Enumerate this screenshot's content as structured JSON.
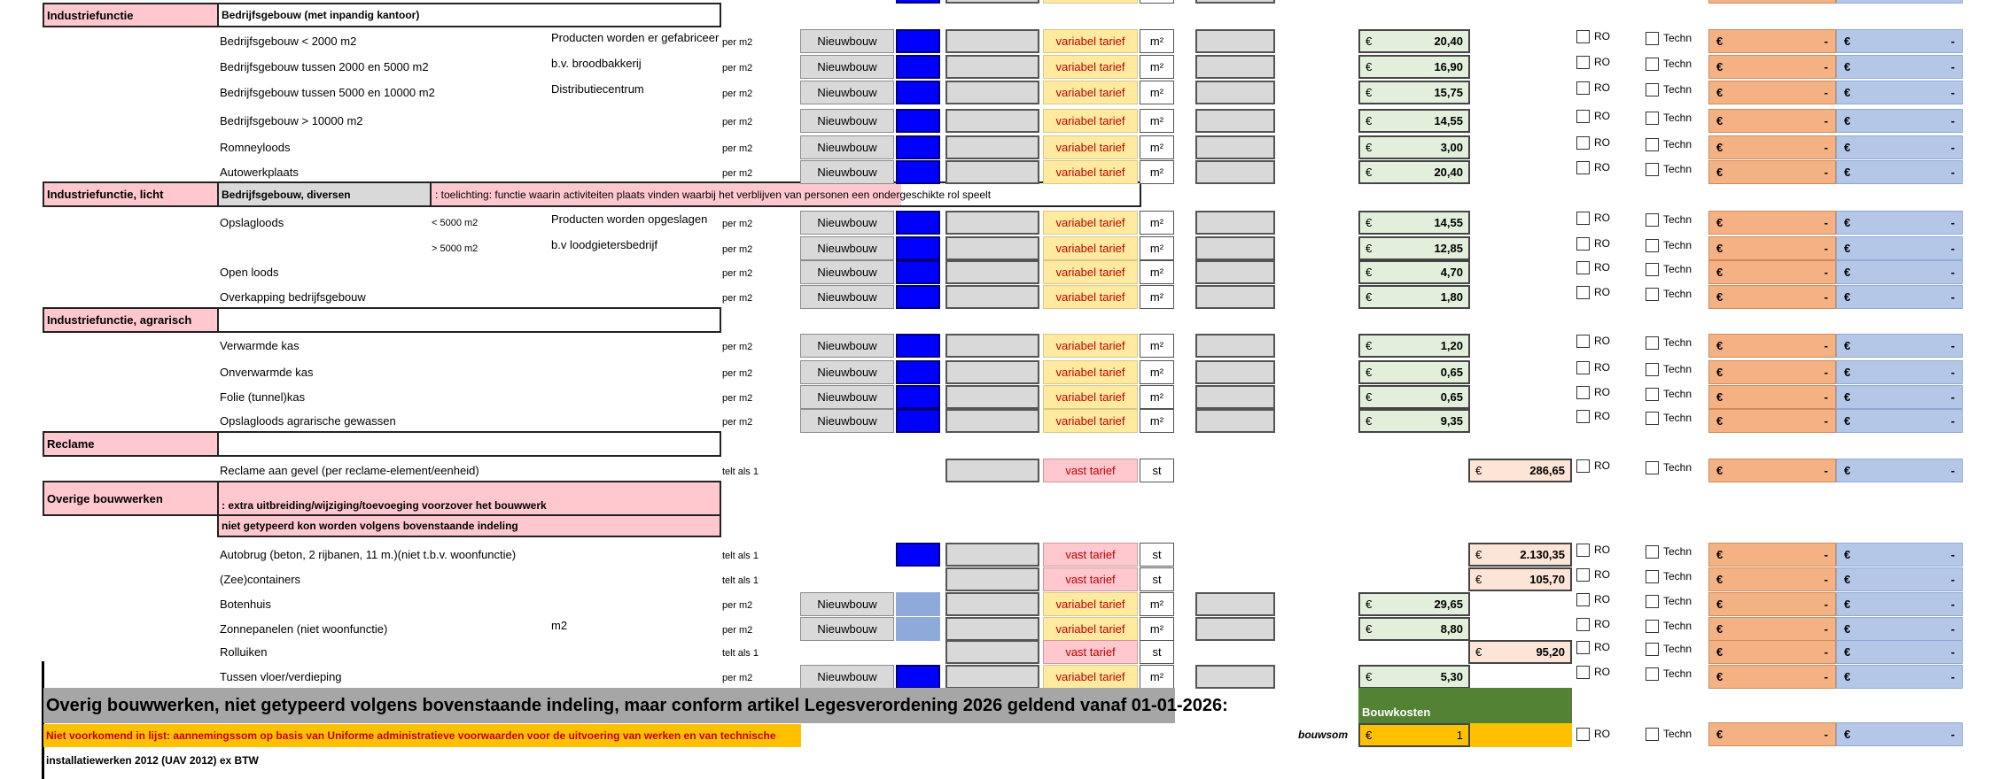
{
  "sections": {
    "industrie": "Industriefunctie",
    "industrie_sub": "Bedrijfsgebouw (met inpandig kantoor)",
    "licht": "Industriefunctie, licht",
    "licht_sub": "Bedrijfsgebouw, diversen",
    "licht_note": ": toelichting: functie waarin activiteiten plaats vinden waarbij het verblijven van personen een ondergeschikte rol speelt",
    "agrarisch": "Industriefunctie, agrarisch",
    "reclame": "Reclame",
    "overig": "Overige bouwwerken",
    "overig_note1": ": extra uitbreiding/wijziging/toevoeging  voorzover het bouwwerk",
    "overig_note2": " niet getypeerd kon worden volgens bovenstaande indeling"
  },
  "rows": [
    {
      "name": "Bedrijfsgebouw < 2000  m2",
      "extra": "",
      "desc": "Producten worden  er gefabriceerd",
      "unit_basis": "per m2",
      "type": "Nieuwbouw",
      "tarief": "variabel tarief",
      "eenheid": "m²",
      "price": "20,40"
    },
    {
      "name": "Bedrijfsgebouw tussen 2000  en 5000 m2",
      "extra": "",
      "desc": "b.v. broodbakkerij",
      "unit_basis": "per m2",
      "type": "Nieuwbouw",
      "tarief": "variabel tarief",
      "eenheid": "m²",
      "price": "16,90"
    },
    {
      "name": "Bedrijfsgebouw tussen 5000  en 10000 m2",
      "extra": "",
      "desc": "Distributiecentrum",
      "unit_basis": "per m2",
      "type": "Nieuwbouw",
      "tarief": "variabel tarief",
      "eenheid": "m²",
      "price": "15,75"
    },
    {
      "name": "Bedrijfsgebouw > 10000 m2",
      "extra": "",
      "desc": "",
      "unit_basis": "per m2",
      "type": "Nieuwbouw",
      "tarief": "variabel tarief",
      "eenheid": "m²",
      "price": "14,55"
    },
    {
      "name": "Romneyloods",
      "extra": "",
      "desc": "",
      "unit_basis": "per m2",
      "type": "Nieuwbouw",
      "tarief": "variabel tarief",
      "eenheid": "m²",
      "price": "3,00"
    },
    {
      "name": "Autowerkplaats",
      "extra": "",
      "desc": "",
      "unit_basis": "per m2",
      "type": "Nieuwbouw",
      "tarief": "variabel tarief",
      "eenheid": "m²",
      "price": "20,40"
    },
    {
      "name": "Opslagloods",
      "extra": "< 5000 m2",
      "desc": "Producten worden opgeslagen",
      "unit_basis": "per m2",
      "type": "Nieuwbouw",
      "tarief": "variabel tarief",
      "eenheid": "m²",
      "price": "14,55"
    },
    {
      "name": "",
      "extra": "> 5000 m2",
      "desc": "b.v loodgietersbedrijf",
      "unit_basis": "per m2",
      "type": "Nieuwbouw",
      "tarief": "variabel tarief",
      "eenheid": "m²",
      "price": "12,85"
    },
    {
      "name": "Open loods",
      "extra": "",
      "desc": "",
      "unit_basis": "per m2",
      "type": "Nieuwbouw",
      "tarief": "variabel tarief",
      "eenheid": "m²",
      "price": "4,70"
    },
    {
      "name": "Overkapping bedrijfsgebouw",
      "extra": "",
      "desc": "",
      "unit_basis": "per m2",
      "type": "Nieuwbouw",
      "tarief": "variabel tarief",
      "eenheid": "m²",
      "price": "1,80"
    },
    {
      "name": "Verwarmde kas",
      "extra": "",
      "desc": "",
      "unit_basis": "per m2",
      "type": "Nieuwbouw",
      "tarief": "variabel tarief",
      "eenheid": "m²",
      "price": "1,20"
    },
    {
      "name": "Onverwarmde kas",
      "extra": "",
      "desc": "",
      "unit_basis": "per m2",
      "type": "Nieuwbouw",
      "tarief": "variabel tarief",
      "eenheid": "m²",
      "price": "0,65"
    },
    {
      "name": "Folie (tunnel)kas",
      "extra": "",
      "desc": "",
      "unit_basis": "per m2",
      "type": "Nieuwbouw",
      "tarief": "variabel tarief",
      "eenheid": "m²",
      "price": "0,65"
    },
    {
      "name": "Opslagloods agrarische gewassen",
      "extra": "",
      "desc": "",
      "unit_basis": "per m2",
      "type": "Nieuwbouw",
      "tarief": "variabel tarief",
      "eenheid": "m²",
      "price": "9,35"
    },
    {
      "name": "Reclame aan gevel (per reclame-element/eenheid)",
      "extra": "",
      "desc": "",
      "unit_basis": "telt als 1",
      "type": "",
      "tarief": "vast tarief",
      "eenheid": "st",
      "price": "286,65"
    },
    {
      "name": "Autobrug (beton, 2 rijbanen, 11 m.)(niet t.b.v. woonfunctie)",
      "extra": "",
      "desc": "",
      "unit_basis": "telt als 1",
      "type": "",
      "tarief": "vast tarief",
      "eenheid": "st",
      "price": "2.130,35"
    },
    {
      "name": "(Zee)containers",
      "extra": "",
      "desc": "",
      "unit_basis": "telt als 1",
      "type": "",
      "tarief": "vast tarief",
      "eenheid": "st",
      "price": "105,70"
    },
    {
      "name": "Botenhuis",
      "extra": "",
      "desc": "",
      "unit_basis": "per m2",
      "type": "Nieuwbouw",
      "tarief": "variabel tarief",
      "eenheid": "m²",
      "price": "29,65"
    },
    {
      "name": "Zonnepanelen (niet woonfunctie)",
      "extra": "",
      "desc": "m2",
      "unit_basis": "per m2",
      "type": "Nieuwbouw",
      "tarief": "variabel tarief",
      "eenheid": "m²",
      "price": "8,80"
    },
    {
      "name": "Rolluiken",
      "extra": "",
      "desc": "",
      "unit_basis": "telt als 1",
      "type": "",
      "tarief": "vast tarief",
      "eenheid": "st",
      "price": "95,20"
    },
    {
      "name": "Tussen vloer/verdieping",
      "extra": "",
      "desc": "",
      "unit_basis": "per m2",
      "type": "Nieuwbouw",
      "tarief": "variabel tarief",
      "eenheid": "m²",
      "price": "5,30"
    }
  ],
  "common": {
    "currency": "€",
    "dash": "-",
    "ro": "RO",
    "techn": "Techn"
  },
  "footer": {
    "banner": "Overig bouwwerken, niet getypeerd volgens bovenstaande indeling, maar conform artikel  Legesverordening 2026 geldend vanaf 01-01-2026:",
    "bouwkosten": "Bouwkosten",
    "yellow_line": "Niet voorkomend in lijst: aannemingssom op basis van Uniforme administratieve voorwaarden voor de uitvoering van werken en van technische",
    "line2": "installatiewerken 2012 (UAV 2012) ex BTW",
    "bouwsom_label": "bouwsom",
    "bouwsom_value": "1"
  }
}
